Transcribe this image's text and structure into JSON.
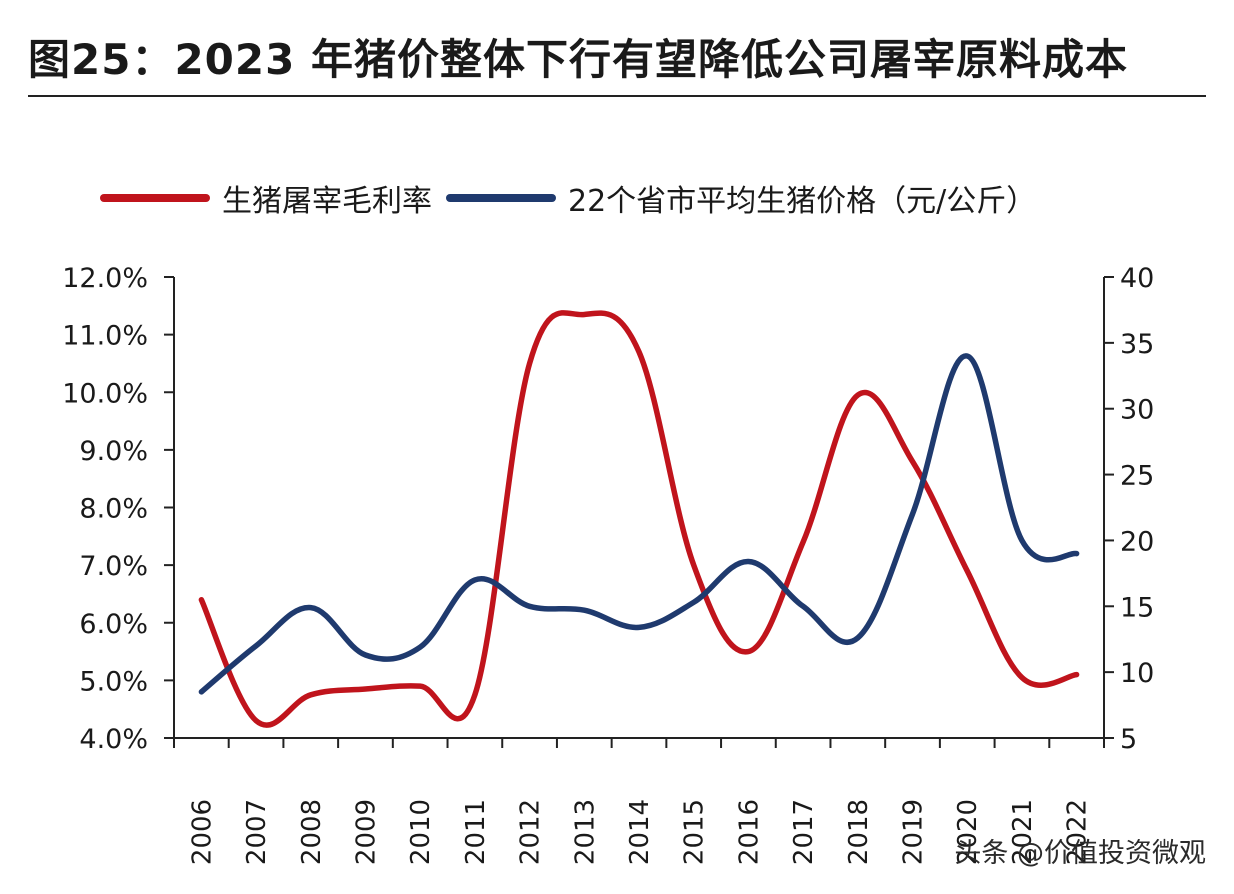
{
  "header": {
    "title": "图25：2023 年猪价整体下行有望降低公司屠宰原料成本"
  },
  "legend": {
    "items": [
      {
        "label": "生猪屠宰毛利率",
        "color": "#c0141c"
      },
      {
        "label": "22个省市平均生猪价格（元/公斤）",
        "color": "#1f3a6e"
      }
    ]
  },
  "watermark": "头条 @价值投资微观",
  "chart_data": {
    "type": "line",
    "categories": [
      "2006",
      "2007",
      "2008",
      "2009",
      "2010",
      "2011",
      "2012",
      "2013",
      "2014",
      "2015",
      "2016",
      "2017",
      "2018",
      "2019",
      "2020",
      "2021",
      "2022"
    ],
    "series": [
      {
        "name": "生猪屠宰毛利率",
        "axis": "left",
        "color": "#c0141c",
        "values": [
          6.4,
          4.3,
          4.75,
          4.85,
          4.9,
          4.75,
          10.5,
          11.35,
          10.7,
          7.0,
          5.5,
          7.4,
          9.95,
          8.8,
          6.9,
          5.05,
          5.1
        ]
      },
      {
        "name": "22个省市平均生猪价格（元/公斤）",
        "axis": "right",
        "color": "#1f3a6e",
        "values": [
          8.5,
          12.0,
          14.9,
          11.3,
          11.9,
          17.0,
          15.0,
          14.7,
          13.4,
          15.3,
          18.4,
          15.0,
          12.6,
          22.0,
          34.0,
          20.0,
          19.0
        ]
      }
    ],
    "y_left": {
      "min": 4.0,
      "max": 12.0,
      "ticks": [
        "4.0%",
        "5.0%",
        "6.0%",
        "7.0%",
        "8.0%",
        "9.0%",
        "10.0%",
        "11.0%",
        "12.0%"
      ]
    },
    "y_right": {
      "min": 5,
      "max": 40,
      "ticks": [
        "5",
        "10",
        "15",
        "20",
        "25",
        "30",
        "35",
        "40"
      ]
    },
    "grid": false,
    "legend_position": "top"
  }
}
